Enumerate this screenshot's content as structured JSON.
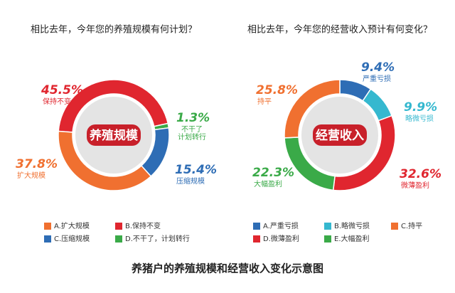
{
  "chart_data": [
    {
      "type": "pie",
      "title": "相比去年，今年您的养殖规模有何计划？",
      "center_label": "养殖规模",
      "categories": [
        "A.扩大规模",
        "B.保持不变",
        "C.压缩规模",
        "D.不干了，计划转行"
      ],
      "short_labels": [
        "扩大规模",
        "保持不变",
        "压缩规模",
        "不干了\n计划转行"
      ],
      "values": [
        37.8,
        45.5,
        15.4,
        1.3
      ],
      "value_labels": [
        "37.8%",
        "45.5%",
        "15.4%",
        "1.3%"
      ],
      "colors": [
        "#f07030",
        "#e0262f",
        "#2e6db5",
        "#3aaa48"
      ]
    },
    {
      "type": "pie",
      "title": "相比去年，今年您的经营收入预计有何变化？",
      "center_label": "经营收入",
      "categories": [
        "A.严重亏损",
        "B.略微亏损",
        "C.持平",
        "D.微薄盈利",
        "E.大幅盈利"
      ],
      "short_labels": [
        "严重亏损",
        "略微亏损",
        "持平",
        "微薄盈利",
        "大幅盈利"
      ],
      "values": [
        9.4,
        9.9,
        25.8,
        32.6,
        22.3
      ],
      "value_labels": [
        "9.4%",
        "9.9%",
        "25.8%",
        "32.6%",
        "22.3%"
      ],
      "colors": [
        "#2e6db5",
        "#35b8cf",
        "#f07030",
        "#e0262f",
        "#3aaa48"
      ]
    }
  ],
  "caption": "养猪户的养殖规模和经营收入变化示意图"
}
